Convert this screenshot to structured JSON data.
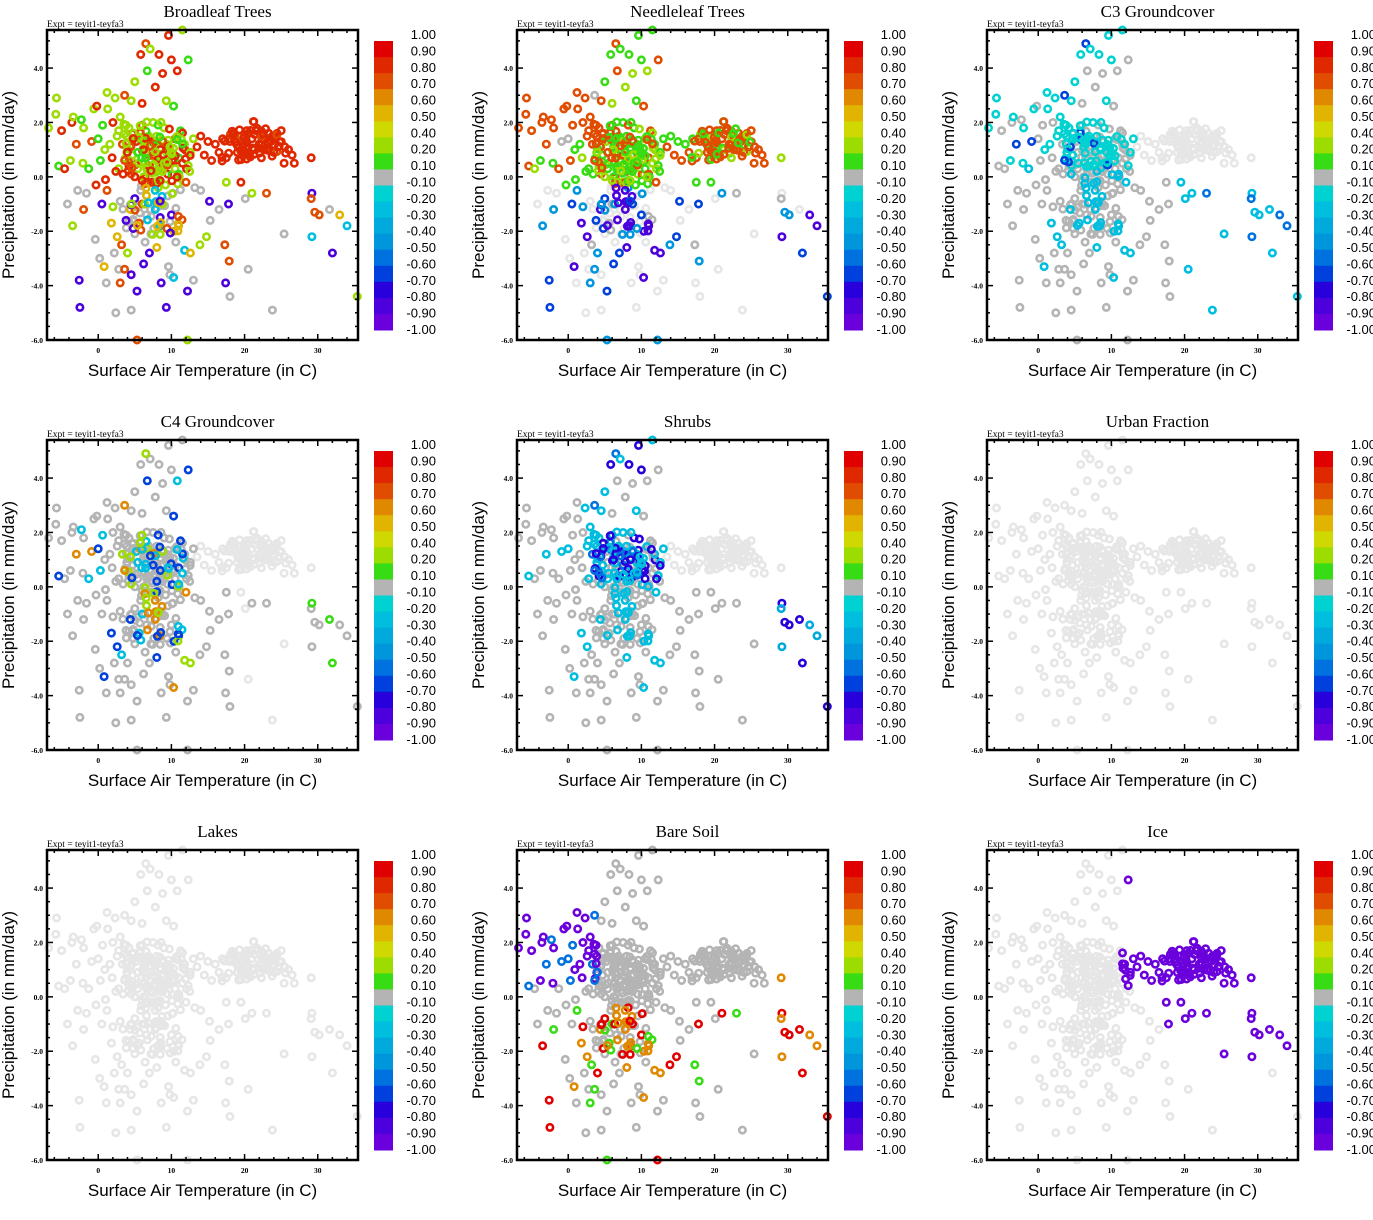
{
  "figure": {
    "expt_label": "Expt = teyit1-teyfa3",
    "xlabel": "Surface Air Temperature (in C)",
    "ylabel": "Precipitation (in mm/day)"
  },
  "chart_data": {
    "type": "scatter",
    "layout": "3x3 grid",
    "xlabel": "Surface Air Temperature (in C)",
    "ylabel": "Precipitation (in mm/day)",
    "xlim": [
      -7,
      35.5
    ],
    "ylim": [
      -6.0,
      5.4
    ],
    "x_ticks": [
      0,
      10,
      20,
      30
    ],
    "x_tick_labels": [
      "0",
      "10",
      "20",
      "30"
    ],
    "y_ticks": [
      -6.0,
      -4.0,
      -2.0,
      0.0,
      2.0,
      4.0
    ],
    "y_tick_labels": [
      "-6.0",
      "-4.0",
      "-2.0",
      "0.0",
      "2.0",
      "4.0"
    ],
    "grid": false,
    "colorbar": {
      "labels": [
        "1.00",
        "0.90",
        "0.80",
        "0.70",
        "0.60",
        "0.50",
        "0.40",
        "0.20",
        "0.10",
        "-0.10",
        "-0.20",
        "-0.30",
        "-0.40",
        "-0.50",
        "-0.60",
        "-0.70",
        "-0.80",
        "-0.90",
        "-1.00"
      ],
      "colors": [
        "#e00000",
        "#e02800",
        "#e04c00",
        "#e08800",
        "#e0b400",
        "#cfd800",
        "#9cdc00",
        "#38dc14",
        "#b4b4b4",
        "#00d2d2",
        "#00bede",
        "#00aadc",
        "#0096dc",
        "#0072e0",
        "#0040dc",
        "#2800dc",
        "#4c00dc",
        "#6a00dc"
      ],
      "placement": "right"
    },
    "insignificant_color": "#e6e6e6",
    "panels": [
      {
        "title": "Broadleaf Trees",
        "pattern": "broadleaf"
      },
      {
        "title": "Needleleaf Trees",
        "pattern": "needleleaf"
      },
      {
        "title": "C3 Groundcover",
        "pattern": "c3"
      },
      {
        "title": "C4 Groundcover",
        "pattern": "c4"
      },
      {
        "title": "Shrubs",
        "pattern": "shrubs"
      },
      {
        "title": "Urban Fraction",
        "pattern": "urban"
      },
      {
        "title": "Lakes",
        "pattern": "lakes"
      },
      {
        "title": "Bare Soil",
        "pattern": "baresoil"
      },
      {
        "title": "Ice",
        "pattern": "ice"
      }
    ],
    "points": [
      [
        -6.8,
        1.8
      ],
      [
        -5.7,
        2.9
      ],
      [
        -5.8,
        2.3
      ],
      [
        -5.0,
        1.7
      ],
      [
        -5.4,
        0.4
      ],
      [
        -4.6,
        0.3
      ],
      [
        -3.8,
        0.6
      ],
      [
        -3.6,
        2.0
      ],
      [
        -3.4,
        2.2
      ],
      [
        -3.0,
        1.2
      ],
      [
        -2.8,
        -0.5
      ],
      [
        -2.3,
        2.1
      ],
      [
        -2.0,
        1.8
      ],
      [
        -2.1,
        0.5
      ],
      [
        -1.6,
        -0.6
      ],
      [
        -1.3,
        0.3
      ],
      [
        -0.9,
        1.3
      ],
      [
        -0.6,
        2.5
      ],
      [
        -0.2,
        2.6
      ],
      [
        0.0,
        1.4
      ],
      [
        0.3,
        0.6
      ],
      [
        0.6,
        1.9
      ],
      [
        0.9,
        1.0
      ],
      [
        1.2,
        3.1
      ],
      [
        1.3,
        2.5
      ],
      [
        1.6,
        1.2
      ],
      [
        1.9,
        0.7
      ],
      [
        2.0,
        2.0
      ],
      [
        2.3,
        2.9
      ],
      [
        2.6,
        1.5
      ],
      [
        2.8,
        0.3
      ],
      [
        3.0,
        2.2
      ],
      [
        3.3,
        1.2
      ],
      [
        3.6,
        3.0
      ],
      [
        3.9,
        0.9
      ],
      [
        4.2,
        1.8
      ],
      [
        4.5,
        2.8
      ],
      [
        4.7,
        0.8
      ],
      [
        5.0,
        3.5
      ],
      [
        5.2,
        1.3
      ],
      [
        5.5,
        0.5
      ],
      [
        5.8,
        4.5
      ],
      [
        6.0,
        2.7
      ],
      [
        6.2,
        1.1
      ],
      [
        6.5,
        4.9
      ],
      [
        6.7,
        3.9
      ],
      [
        6.9,
        1.5
      ],
      [
        7.1,
        4.7
      ],
      [
        7.3,
        0.9
      ],
      [
        7.5,
        2.0
      ],
      [
        7.8,
        3.3
      ],
      [
        8.0,
        1.2
      ],
      [
        8.3,
        4.5
      ],
      [
        8.5,
        0.6
      ],
      [
        8.8,
        3.8
      ],
      [
        9.0,
        1.8
      ],
      [
        9.3,
        2.8
      ],
      [
        9.6,
        5.2
      ],
      [
        9.8,
        0.9
      ],
      [
        10.0,
        4.3
      ],
      [
        10.3,
        2.6
      ],
      [
        10.5,
        1.4
      ],
      [
        10.8,
        3.9
      ],
      [
        11.0,
        0.7
      ],
      [
        11.5,
        5.4
      ],
      [
        11.8,
        1.2
      ],
      [
        12.3,
        4.3
      ],
      [
        12.6,
        0.9
      ],
      [
        13.0,
        1.4
      ],
      [
        13.5,
        1.1
      ],
      [
        14.0,
        1.5
      ],
      [
        14.5,
        0.8
      ],
      [
        15.0,
        1.3
      ],
      [
        15.5,
        0.6
      ],
      [
        16.0,
        1.2
      ],
      [
        16.5,
        0.9
      ],
      [
        17.0,
        1.4
      ],
      [
        17.5,
        0.7
      ],
      [
        18.0,
        1.3
      ],
      [
        18.5,
        1.6
      ],
      [
        19.0,
        0.9
      ],
      [
        19.5,
        1.5
      ],
      [
        20.0,
        1.2
      ],
      [
        20.3,
        1.7
      ],
      [
        20.6,
        0.8
      ],
      [
        21.0,
        1.4
      ],
      [
        21.3,
        1.0
      ],
      [
        21.6,
        1.7
      ],
      [
        22.0,
        1.2
      ],
      [
        22.3,
        0.7
      ],
      [
        22.6,
        1.5
      ],
      [
        23.0,
        1.0
      ],
      [
        23.3,
        1.6
      ],
      [
        23.6,
        1.3
      ],
      [
        24.0,
        0.9
      ],
      [
        24.3,
        1.5
      ],
      [
        24.6,
        1.1
      ],
      [
        25.0,
        1.7
      ],
      [
        25.5,
        1.1
      ],
      [
        26.0,
        1.0
      ],
      [
        26.5,
        0.8
      ],
      [
        26.8,
        0.5
      ],
      [
        25.4,
        0.5
      ],
      [
        29.1,
        0.7
      ],
      [
        7.0,
        0.4
      ],
      [
        7.5,
        0.8
      ],
      [
        8.0,
        0.2
      ],
      [
        8.5,
        1.0
      ],
      [
        9.0,
        0.5
      ],
      [
        9.5,
        0.1
      ],
      [
        10.0,
        0.8
      ],
      [
        10.5,
        0.3
      ],
      [
        6.5,
        1.2
      ],
      [
        8.8,
        1.3
      ],
      [
        9.8,
        1.1
      ],
      [
        7.3,
        -0.2
      ],
      [
        8.2,
        -0.4
      ],
      [
        9.2,
        -0.3
      ],
      [
        10.2,
        -0.6
      ],
      [
        11.0,
        0.1
      ],
      [
        11.5,
        0.5
      ],
      [
        12.0,
        -0.2
      ],
      [
        6.2,
        0.0
      ],
      [
        5.8,
        -0.5
      ],
      [
        12.5,
        0.2
      ],
      [
        13.2,
        -0.4
      ],
      [
        14.0,
        -0.5
      ],
      [
        15.2,
        -0.9
      ],
      [
        17.5,
        -0.2
      ],
      [
        17.8,
        -1.0
      ],
      [
        19.5,
        -0.2
      ],
      [
        20.1,
        -0.8
      ],
      [
        21.0,
        -0.6
      ],
      [
        23.0,
        -0.6
      ],
      [
        29.2,
        -0.6
      ],
      [
        29.1,
        -0.8
      ],
      [
        29.6,
        -1.3
      ],
      [
        30.2,
        -1.4
      ],
      [
        31.6,
        -1.2
      ],
      [
        33.0,
        -1.4
      ],
      [
        34.0,
        -1.8
      ],
      [
        -4.2,
        -1.0
      ],
      [
        -3.5,
        -1.8
      ],
      [
        -2.0,
        -1.2
      ],
      [
        -0.4,
        -2.3
      ],
      [
        0.2,
        -3.0
      ],
      [
        0.8,
        -3.3
      ],
      [
        1.1,
        -3.9
      ],
      [
        2.2,
        -2.8
      ],
      [
        2.8,
        -3.4
      ],
      [
        3.0,
        -3.9
      ],
      [
        3.6,
        -3.4
      ],
      [
        4.5,
        -3.6
      ],
      [
        5.0,
        -2.1
      ],
      [
        5.3,
        -4.2
      ],
      [
        6.2,
        -3.2
      ],
      [
        7.0,
        -2.8
      ],
      [
        7.6,
        -1.9
      ],
      [
        8.0,
        -2.6
      ],
      [
        8.6,
        -3.9
      ],
      [
        9.3,
        -4.8
      ],
      [
        9.6,
        -3.3
      ],
      [
        9.8,
        -3.6
      ],
      [
        10.3,
        -3.7
      ],
      [
        10.6,
        -2.4
      ],
      [
        11.0,
        -1.8
      ],
      [
        11.8,
        -2.7
      ],
      [
        12.2,
        -4.2
      ],
      [
        12.6,
        -2.8
      ],
      [
        13.0,
        -3.8
      ],
      [
        13.9,
        -2.5
      ],
      [
        14.8,
        -2.2
      ],
      [
        15.3,
        -1.6
      ],
      [
        16.5,
        -1.2
      ],
      [
        17.3,
        -2.5
      ],
      [
        17.4,
        -3.9
      ],
      [
        17.9,
        -3.1
      ],
      [
        18.0,
        -4.4
      ],
      [
        20.5,
        -3.4
      ],
      [
        23.8,
        -4.9
      ],
      [
        25.4,
        -2.1
      ],
      [
        29.2,
        -2.2
      ],
      [
        32.0,
        -2.8
      ],
      [
        2.4,
        -5.0
      ],
      [
        -2.5,
        -4.8
      ],
      [
        4.5,
        -4.9
      ],
      [
        -2.6,
        -3.8
      ],
      [
        12.2,
        -6.0
      ],
      [
        5.3,
        -6.0
      ],
      [
        35.4,
        -4.4
      ],
      [
        1.2,
        -0.5
      ],
      [
        2.0,
        -1.1
      ],
      [
        3.0,
        -0.9
      ],
      [
        3.8,
        -1.6
      ],
      [
        4.4,
        -1.2
      ],
      [
        5.0,
        -0.8
      ],
      [
        5.6,
        -1.7
      ],
      [
        6.0,
        -1.0
      ],
      [
        6.6,
        -1.4
      ],
      [
        7.2,
        -2.1
      ],
      [
        7.8,
        -1.2
      ],
      [
        8.4,
        -1.8
      ],
      [
        8.8,
        -1.0
      ],
      [
        9.4,
        -1.9
      ],
      [
        10.0,
        -1.4
      ],
      [
        1.8,
        -1.7
      ],
      [
        2.6,
        -2.2
      ],
      [
        3.2,
        -2.5
      ],
      [
        4.0,
        -2.8
      ],
      [
        4.8,
        -1.9
      ],
      [
        6.4,
        -2.4
      ],
      [
        0.5,
        -1.0
      ],
      [
        -0.3,
        -0.3
      ],
      [
        1.0,
        -0.1
      ],
      [
        2.4,
        0.2
      ],
      [
        3.4,
        0.1
      ],
      [
        4.2,
        0.4
      ],
      [
        5.0,
        0.0
      ],
      [
        5.4,
        0.9
      ],
      [
        6.0,
        1.9
      ],
      [
        4.8,
        1.6
      ],
      [
        3.8,
        1.9
      ],
      [
        2.8,
        1.7
      ],
      [
        3.6,
        0.6
      ],
      [
        4.4,
        1.1
      ]
    ],
    "panel_values_note": "Each point colored by correlation value; points with |r| < 0.1 shown gray, non-dominant points shown light gray."
  }
}
